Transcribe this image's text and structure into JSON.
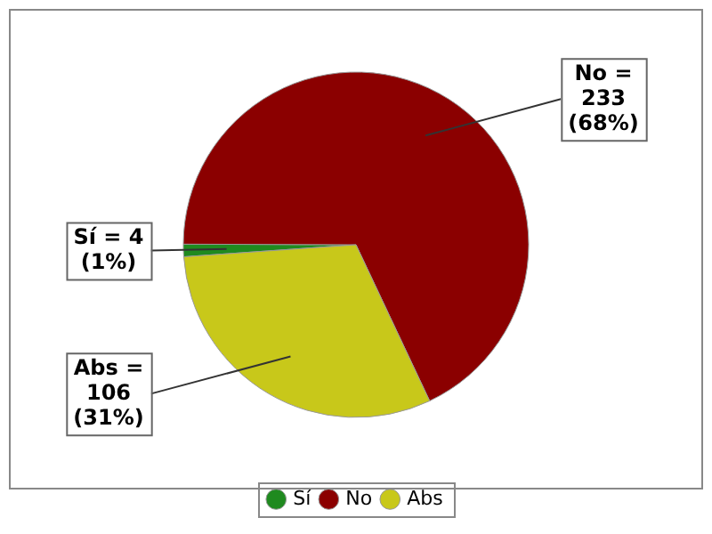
{
  "chart_data": {
    "type": "pie",
    "categories": [
      "Sí",
      "No",
      "Abs"
    ],
    "values": [
      4,
      233,
      106
    ],
    "colors": [
      "#1f8a1f",
      "#8b0000",
      "#c8c81a"
    ],
    "value_labels": [
      "Sí = 4\n(1%)",
      "No =\n233\n(68%)",
      "Abs =\n106\n(31%)"
    ],
    "legend": "bottom"
  }
}
